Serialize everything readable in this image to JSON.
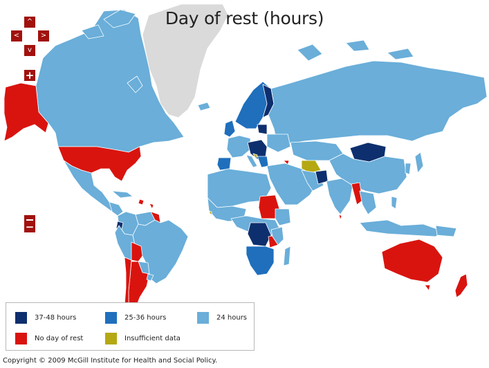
{
  "title": "Day of rest (hours)",
  "colors": {
    "ocean": "#ffffff",
    "h37_48": "#0e2f6e",
    "h25_36": "#1f6fbd",
    "h24": "#6aaed9",
    "none": "#d9140f",
    "insufficient": "#b5a812",
    "no_data": "#dadada",
    "border": "#ffffff",
    "control": "#a1110d"
  },
  "controls": {
    "pan_up": "^",
    "pan_left": "<",
    "pan_right": ">",
    "pan_down": "v",
    "zoom_in": "+",
    "zoom_out": "−"
  },
  "legend": [
    {
      "label": "37-48 hours",
      "color": "#0e2f6e"
    },
    {
      "label": "25-36 hours",
      "color": "#1f6fbd"
    },
    {
      "label": "24 hours",
      "color": "#6aaed9"
    },
    {
      "label": "No day of rest",
      "color": "#d9140f"
    },
    {
      "label": "Insufficient data",
      "color": "#b5a812"
    }
  ],
  "footer": {
    "copyright": "Copyright © 2009 McGill Institute for Health and Social Policy."
  }
}
